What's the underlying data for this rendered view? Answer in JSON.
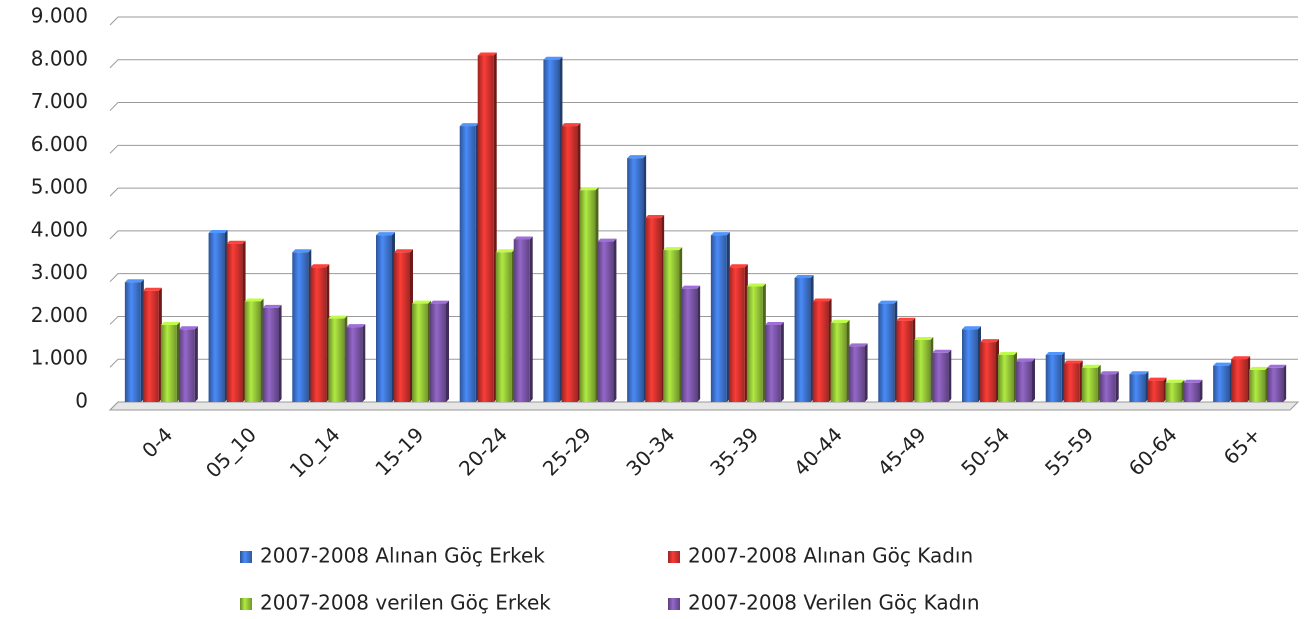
{
  "chart_data": {
    "type": "bar",
    "categories": [
      "0-4",
      "05_10",
      "10_14",
      "15-19",
      "20-24",
      "25-29",
      "30-34",
      "35-39",
      "40-44",
      "45-49",
      "50-54",
      "55-59",
      "60-64",
      "65+"
    ],
    "series": [
      {
        "name": "2007-2008 Alınan Göç Erkek",
        "color": "#3b6fc6",
        "values": [
          2800,
          3950,
          3500,
          3900,
          6450,
          8000,
          5700,
          3900,
          2900,
          2300,
          1700,
          1100,
          650,
          850
        ]
      },
      {
        "name": "2007-2008 Alınan Göç Kadın",
        "color": "#c9302c",
        "values": [
          2600,
          3700,
          3150,
          3500,
          8100,
          6450,
          4300,
          3150,
          2350,
          1900,
          1400,
          900,
          500,
          1000
        ]
      },
      {
        "name": "2007-2008 verilen Göç Erkek",
        "color": "#8dbb35",
        "values": [
          1800,
          2350,
          1950,
          2300,
          3500,
          4950,
          3550,
          2700,
          1850,
          1450,
          1100,
          800,
          450,
          750
        ]
      },
      {
        "name": "2007-2008 Verilen  Göç Kadın",
        "color": "#7652a1",
        "values": [
          1700,
          2200,
          1750,
          2300,
          3800,
          3750,
          2650,
          1800,
          1300,
          1150,
          950,
          650,
          450,
          800
        ]
      }
    ],
    "ylim": [
      0,
      9000
    ],
    "yticks": [
      0,
      {
        "value": 1000,
        "label": "1.000"
      },
      {
        "value": 2000,
        "label": "2.000"
      },
      {
        "value": 3000,
        "label": "3.000"
      },
      {
        "value": 4000,
        "label": "4.000"
      },
      {
        "value": 5000,
        "label": "5.000"
      },
      {
        "value": 6000,
        "label": "6.000"
      },
      {
        "value": 7000,
        "label": "7.000"
      },
      {
        "value": 8000,
        "label": "8.000"
      },
      {
        "value": 9000,
        "label": "9.000"
      }
    ],
    "grid": true
  }
}
